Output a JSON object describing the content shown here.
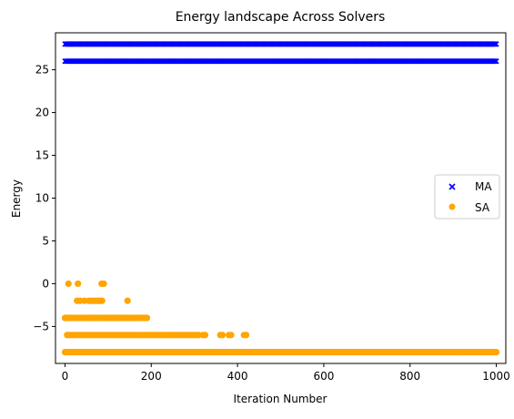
{
  "chart_data": {
    "type": "scatter",
    "title": "Energy landscape Across Solvers",
    "xlabel": "Iteration Number",
    "ylabel": "Energy",
    "xlim": [
      -22,
      1022
    ],
    "ylim": [
      -9.32,
      29.32
    ],
    "xticks": [
      0,
      200,
      400,
      600,
      800,
      1000
    ],
    "yticks": [
      -5,
      0,
      5,
      10,
      15,
      20,
      25
    ],
    "legend_position": "center-right",
    "grid": false,
    "series": [
      {
        "name": "MA",
        "marker": "x",
        "color": "#0000ff",
        "points": [
          {
            "x_range": [
              0,
              1000
            ],
            "x_step": 2,
            "y": 28
          },
          {
            "x_range": [
              0,
              1000
            ],
            "x_step": 2,
            "y": 26
          }
        ]
      },
      {
        "name": "SA",
        "marker": "o",
        "color": "#ffa500",
        "points": [
          {
            "x": [
              8,
              30,
              85,
              90
            ],
            "y": 0
          },
          {
            "x": [
              28,
              35,
              45,
              55,
              60,
              65,
              70,
              75,
              78,
              82,
              86,
              145
            ],
            "y": -2
          },
          {
            "x": [
              0,
              5,
              10,
              15,
              20,
              25,
              30,
              35,
              40,
              45,
              50,
              55,
              60,
              65,
              70,
              75,
              80,
              85,
              90,
              95,
              100,
              105,
              110,
              115,
              120,
              125,
              130,
              135,
              140,
              145,
              150,
              155,
              160,
              165,
              170,
              175,
              180,
              185,
              190
            ],
            "y": -4
          },
          {
            "x": [
              5,
              10,
              15,
              20,
              25,
              30,
              35,
              40,
              45,
              50,
              55,
              60,
              65,
              70,
              75,
              80,
              85,
              90,
              95,
              100,
              105,
              110,
              115,
              120,
              125,
              130,
              135,
              140,
              145,
              150,
              155,
              160,
              165,
              170,
              175,
              180,
              185,
              190,
              195,
              200,
              205,
              210,
              215,
              220,
              225,
              230,
              235,
              240,
              245,
              250,
              255,
              260,
              265,
              270,
              275,
              280,
              285,
              290,
              295,
              300,
              305,
              310,
              320,
              325,
              360,
              365,
              380,
              385,
              415,
              420
            ],
            "y": -6
          },
          {
            "x_range": [
              0,
              1000
            ],
            "x_step": 4,
            "y": -8
          }
        ]
      }
    ]
  }
}
